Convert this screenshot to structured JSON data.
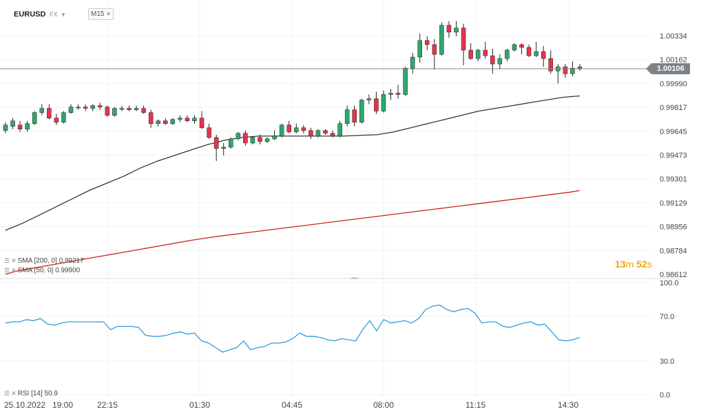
{
  "header": {
    "symbol": "EURUSD",
    "market": "FX",
    "timeframe": "M15"
  },
  "colors": {
    "up": "#2ea86b",
    "down": "#e8334a",
    "sma50": "#333333",
    "sma200": "#cc2222",
    "rsi": "#2f9be0",
    "current_price": "#7d8287",
    "countdown": "#f0a30a"
  },
  "indicators": {
    "sma200_label": "SMA [200, 0] 0.99217",
    "sma50_label": "SMA [50, 0] 0.99900",
    "rsi_label": "RSI [14] 50.9"
  },
  "countdown": {
    "minutes": "13",
    "m": "m",
    "seconds": "52",
    "s": "s"
  },
  "current_price": "1.00106",
  "chart_data": [
    {
      "type": "candlestick",
      "title": "EURUSD",
      "ylim": [
        0.98612,
        1.00334
      ],
      "y_ticks": [
        "1.00334",
        "1.00162",
        "0.99990",
        "0.99817",
        "0.99645",
        "0.99473",
        "0.99301",
        "0.99129",
        "0.98956",
        "0.98784",
        "0.98612"
      ],
      "x_ticks": [
        "25.10.2022",
        "19:00",
        "22:15",
        "01:30",
        "04:45",
        "08:00",
        "11:15",
        "14:30"
      ],
      "current_price": 1.00106,
      "ohlc": [
        [
          0.9965,
          0.9971,
          0.9963,
          0.9969
        ],
        [
          0.9968,
          0.9974,
          0.9966,
          0.9972
        ],
        [
          0.9969,
          0.9972,
          0.9964,
          0.9966
        ],
        [
          0.9966,
          0.9972,
          0.9964,
          0.997
        ],
        [
          0.997,
          0.9979,
          0.9969,
          0.9978
        ],
        [
          0.9978,
          0.9984,
          0.9976,
          0.9981
        ],
        [
          0.9981,
          0.9984,
          0.9973,
          0.9974
        ],
        [
          0.9974,
          0.9977,
          0.9969,
          0.9971
        ],
        [
          0.9971,
          0.9979,
          0.997,
          0.9978
        ],
        [
          0.9978,
          0.9984,
          0.9977,
          0.9982
        ],
        [
          0.9982,
          0.9984,
          0.998,
          0.9982
        ],
        [
          0.9982,
          0.9984,
          0.9979,
          0.9981
        ],
        [
          0.9981,
          0.9984,
          0.9979,
          0.9983
        ],
        [
          0.9983,
          0.9985,
          0.998,
          0.9982
        ],
        [
          0.9982,
          0.9983,
          0.9975,
          0.9976
        ],
        [
          0.9976,
          0.9982,
          0.9975,
          0.9981
        ],
        [
          0.9981,
          0.9983,
          0.9979,
          0.9981
        ],
        [
          0.9981,
          0.9983,
          0.9979,
          0.998
        ],
        [
          0.998,
          0.9983,
          0.9979,
          0.9981
        ],
        [
          0.9981,
          0.9983,
          0.9977,
          0.9978
        ],
        [
          0.9978,
          0.998,
          0.9967,
          0.997
        ],
        [
          0.997,
          0.9973,
          0.9968,
          0.9972
        ],
        [
          0.9972,
          0.9974,
          0.9969,
          0.997
        ],
        [
          0.997,
          0.9974,
          0.9969,
          0.9973
        ],
        [
          0.9973,
          0.9976,
          0.9971,
          0.9974
        ],
        [
          0.9974,
          0.9976,
          0.9971,
          0.9972
        ],
        [
          0.9972,
          0.9976,
          0.997,
          0.9974
        ],
        [
          0.9974,
          0.9979,
          0.9966,
          0.9967
        ],
        [
          0.9967,
          0.997,
          0.9959,
          0.996
        ],
        [
          0.996,
          0.9962,
          0.9943,
          0.9952
        ],
        [
          0.9952,
          0.9956,
          0.9947,
          0.9953
        ],
        [
          0.9953,
          0.996,
          0.9952,
          0.9959
        ],
        [
          0.9959,
          0.9964,
          0.9958,
          0.9963
        ],
        [
          0.9963,
          0.9965,
          0.9954,
          0.9956
        ],
        [
          0.9956,
          0.9961,
          0.9955,
          0.996
        ],
        [
          0.996,
          0.9962,
          0.9955,
          0.9957
        ],
        [
          0.9957,
          0.996,
          0.9956,
          0.9959
        ],
        [
          0.9959,
          0.9965,
          0.9958,
          0.9961
        ],
        [
          0.9961,
          0.997,
          0.996,
          0.9969
        ],
        [
          0.9969,
          0.9972,
          0.9963,
          0.9964
        ],
        [
          0.9964,
          0.997,
          0.9963,
          0.9967
        ],
        [
          0.9967,
          0.9969,
          0.9963,
          0.9965
        ],
        [
          0.9965,
          0.9967,
          0.9959,
          0.9961
        ],
        [
          0.9961,
          0.9966,
          0.996,
          0.9965
        ],
        [
          0.9965,
          0.9966,
          0.9962,
          0.9963
        ],
        [
          0.9963,
          0.9965,
          0.996,
          0.9961
        ],
        [
          0.9961,
          0.9972,
          0.996,
          0.997
        ],
        [
          0.997,
          0.9983,
          0.9968,
          0.998
        ],
        [
          0.998,
          0.9983,
          0.9968,
          0.9971
        ],
        [
          0.9971,
          0.9988,
          0.997,
          0.9987
        ],
        [
          0.9987,
          0.9991,
          0.9984,
          0.9988
        ],
        [
          0.9988,
          0.9993,
          0.9977,
          0.9979
        ],
        [
          0.9979,
          0.9994,
          0.9978,
          0.9991
        ],
        [
          0.9991,
          0.9995,
          0.9987,
          0.9992
        ],
        [
          0.9992,
          0.9998,
          0.9988,
          0.9991
        ],
        [
          0.9991,
          1.0011,
          0.999,
          1.001
        ],
        [
          1.001,
          1.0021,
          1.0006,
          1.0018
        ],
        [
          1.0018,
          1.0035,
          1.0014,
          1.003
        ],
        [
          1.003,
          1.0033,
          1.0023,
          1.0027
        ],
        [
          1.0027,
          1.0031,
          1.0009,
          1.002
        ],
        [
          1.002,
          1.0043,
          1.0019,
          1.0041
        ],
        [
          1.0041,
          1.0044,
          1.0032,
          1.0036
        ],
        [
          1.0036,
          1.0044,
          1.0033,
          1.0039
        ],
        [
          1.0039,
          1.0042,
          1.0012,
          1.0023
        ],
        [
          1.0023,
          1.0028,
          1.0016,
          1.0017
        ],
        [
          1.0017,
          1.0024,
          1.0015,
          1.0023
        ],
        [
          1.0023,
          1.0029,
          1.0017,
          1.0019
        ],
        [
          1.0019,
          1.0024,
          1.0006,
          1.0013
        ],
        [
          1.0013,
          1.002,
          1.0009,
          1.0017
        ],
        [
          1.0017,
          1.0024,
          1.0015,
          1.0023
        ],
        [
          1.0023,
          1.0028,
          1.0022,
          1.0027
        ],
        [
          1.0027,
          1.0028,
          1.002,
          1.0025
        ],
        [
          1.0025,
          1.0027,
          1.0018,
          1.0019
        ],
        [
          1.0019,
          1.0029,
          1.0018,
          1.0022
        ],
        [
          1.0022,
          1.0026,
          1.0011,
          1.0017
        ],
        [
          1.0017,
          1.0023,
          1.0006,
          1.0008
        ],
        [
          1.0008,
          1.0013,
          0.9999,
          1.0011
        ],
        [
          1.0011,
          1.0013,
          1.0003,
          1.0006
        ],
        [
          1.0006,
          1.0015,
          1.0004,
          1.001
        ],
        [
          1.001,
          1.0013,
          1.0008,
          1.0011
        ]
      ],
      "series": [
        {
          "name": "SMA [200, 0]",
          "values": [
            0.98612,
            0.98636,
            0.9865,
            0.98664,
            0.98678,
            0.98692,
            0.98706,
            0.9872,
            0.98734,
            0.98748,
            0.98762,
            0.98776,
            0.9879,
            0.98804,
            0.98818,
            0.98832,
            0.98846,
            0.9886,
            0.98872,
            0.98884,
            0.98894,
            0.98904,
            0.98914,
            0.98924,
            0.98934,
            0.98944,
            0.98954,
            0.98964,
            0.98974,
            0.98984,
            0.98994,
            0.99004,
            0.99014,
            0.99024,
            0.99034,
            0.99044,
            0.99054,
            0.99064,
            0.99074,
            0.99084,
            0.99094,
            0.99104,
            0.99114,
            0.99124,
            0.99134,
            0.99144,
            0.99154,
            0.99164,
            0.99174,
            0.99184,
            0.99194,
            0.99204,
            0.99217
          ]
        },
        {
          "name": "SMA [50, 0]",
          "values": [
            0.9893,
            0.9898,
            0.9904,
            0.991,
            0.9916,
            0.9922,
            0.9927,
            0.9932,
            0.9938,
            0.9943,
            0.9947,
            0.9951,
            0.9955,
            0.9958,
            0.996,
            0.9961,
            0.9961,
            0.9961,
            0.9961,
            0.9961,
            0.9961,
            0.99615,
            0.9962,
            0.9964,
            0.9967,
            0.997,
            0.9973,
            0.9976,
            0.9979,
            0.9981,
            0.9983,
            0.9985,
            0.9987,
            0.9989,
            0.999
          ]
        }
      ]
    },
    {
      "type": "line",
      "ylim": [
        0.0,
        100.0
      ],
      "y_ticks": [
        "100.0",
        "70.0",
        "30.0",
        "0.0"
      ],
      "series": [
        {
          "name": "RSI [14]",
          "values": [
            64,
            65,
            65,
            67,
            66,
            68,
            63,
            62,
            64,
            65,
            65,
            65,
            65,
            65,
            65,
            58,
            61,
            61,
            61,
            60,
            53,
            52,
            52,
            53,
            55,
            56,
            54,
            55,
            48,
            46,
            42,
            38,
            40,
            42,
            48,
            40,
            42,
            43,
            46,
            46,
            47,
            50,
            55,
            52,
            52,
            51,
            49,
            48,
            50,
            49,
            48,
            58,
            66,
            57,
            67,
            64,
            65,
            66,
            64,
            68,
            76,
            79,
            80,
            76,
            74,
            76,
            77,
            73,
            64,
            65,
            65,
            61,
            60,
            62,
            64,
            65,
            62,
            63,
            56,
            49,
            48,
            49,
            51
          ]
        }
      ]
    }
  ]
}
